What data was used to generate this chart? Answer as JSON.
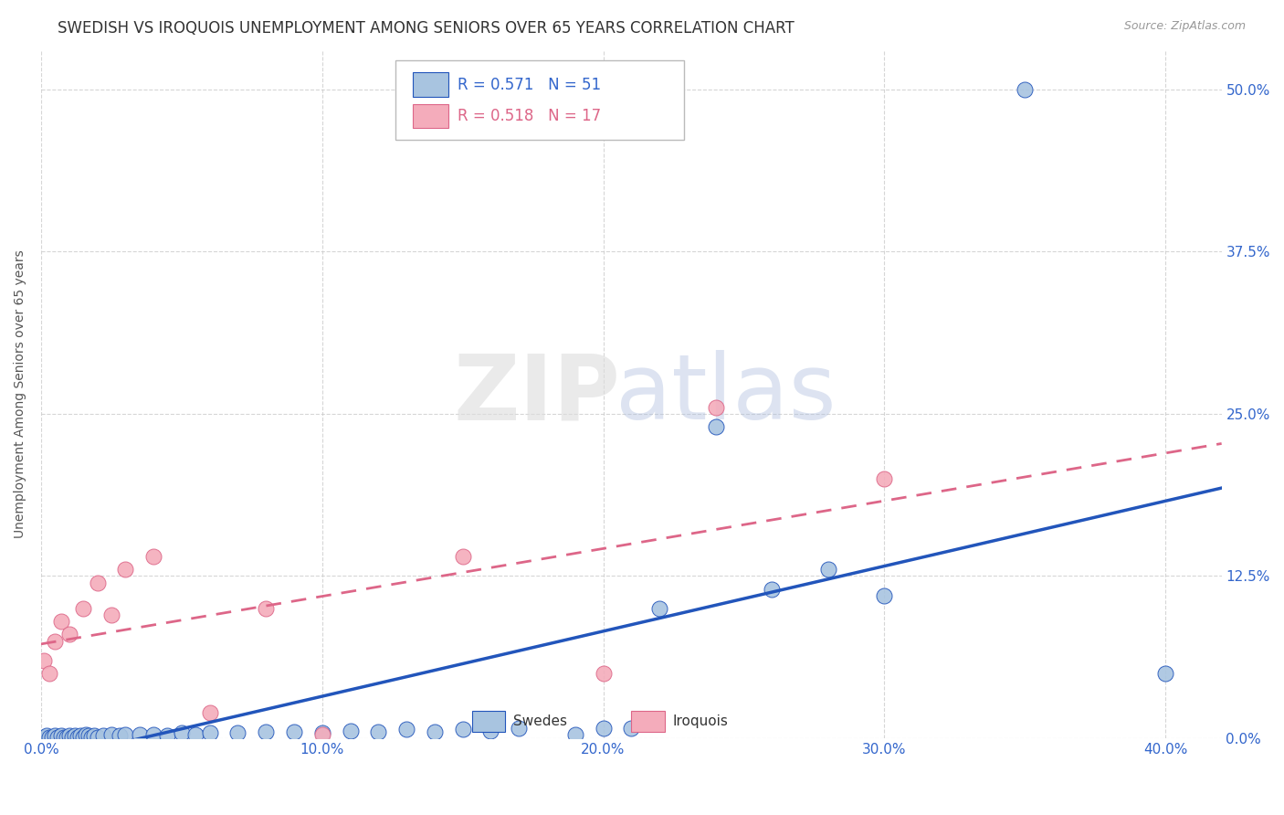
{
  "title": "SWEDISH VS IROQUOIS UNEMPLOYMENT AMONG SENIORS OVER 65 YEARS CORRELATION CHART",
  "source": "Source: ZipAtlas.com",
  "xlabel_ticks": [
    "0.0%",
    "10.0%",
    "20.0%",
    "30.0%",
    "40.0%"
  ],
  "ylabel_ticks": [
    "0.0%",
    "12.5%",
    "25.0%",
    "37.5%",
    "50.0%"
  ],
  "ylabel_label": "Unemployment Among Seniors over 65 years",
  "legend_swedes": "Swedes",
  "legend_iroquois": "Iroquois",
  "swedish_R": 0.571,
  "swedish_N": 51,
  "iroquois_R": 0.518,
  "iroquois_N": 17,
  "swedish_color": "#A8C4E0",
  "iroquois_color": "#F4ACBB",
  "swedish_line_color": "#2255BB",
  "iroquois_line_color": "#DD6688",
  "background_color": "#FFFFFF",
  "watermark_zip": "ZIP",
  "watermark_atlas": "atlas",
  "swedish_points": [
    [
      0.001,
      0.001
    ],
    [
      0.002,
      0.002
    ],
    [
      0.003,
      0.001
    ],
    [
      0.004,
      0.001
    ],
    [
      0.005,
      0.002
    ],
    [
      0.006,
      0.001
    ],
    [
      0.007,
      0.002
    ],
    [
      0.008,
      0.001
    ],
    [
      0.009,
      0.001
    ],
    [
      0.01,
      0.002
    ],
    [
      0.011,
      0.001
    ],
    [
      0.012,
      0.002
    ],
    [
      0.013,
      0.001
    ],
    [
      0.014,
      0.002
    ],
    [
      0.015,
      0.001
    ],
    [
      0.016,
      0.003
    ],
    [
      0.017,
      0.002
    ],
    [
      0.018,
      0.001
    ],
    [
      0.019,
      0.002
    ],
    [
      0.02,
      0.001
    ],
    [
      0.022,
      0.002
    ],
    [
      0.025,
      0.003
    ],
    [
      0.028,
      0.002
    ],
    [
      0.03,
      0.003
    ],
    [
      0.035,
      0.003
    ],
    [
      0.04,
      0.003
    ],
    [
      0.045,
      0.002
    ],
    [
      0.05,
      0.004
    ],
    [
      0.055,
      0.003
    ],
    [
      0.06,
      0.004
    ],
    [
      0.07,
      0.004
    ],
    [
      0.08,
      0.005
    ],
    [
      0.09,
      0.005
    ],
    [
      0.1,
      0.004
    ],
    [
      0.11,
      0.006
    ],
    [
      0.12,
      0.005
    ],
    [
      0.13,
      0.007
    ],
    [
      0.14,
      0.005
    ],
    [
      0.15,
      0.007
    ],
    [
      0.16,
      0.006
    ],
    [
      0.17,
      0.008
    ],
    [
      0.19,
      0.003
    ],
    [
      0.2,
      0.008
    ],
    [
      0.21,
      0.008
    ],
    [
      0.22,
      0.1
    ],
    [
      0.24,
      0.24
    ],
    [
      0.26,
      0.115
    ],
    [
      0.28,
      0.13
    ],
    [
      0.3,
      0.11
    ],
    [
      0.35,
      0.5
    ],
    [
      0.4,
      0.05
    ]
  ],
  "iroquois_points": [
    [
      0.001,
      0.06
    ],
    [
      0.003,
      0.05
    ],
    [
      0.005,
      0.075
    ],
    [
      0.007,
      0.09
    ],
    [
      0.01,
      0.08
    ],
    [
      0.015,
      0.1
    ],
    [
      0.02,
      0.12
    ],
    [
      0.025,
      0.095
    ],
    [
      0.03,
      0.13
    ],
    [
      0.04,
      0.14
    ],
    [
      0.06,
      0.02
    ],
    [
      0.08,
      0.1
    ],
    [
      0.1,
      0.003
    ],
    [
      0.15,
      0.14
    ],
    [
      0.2,
      0.05
    ],
    [
      0.24,
      0.255
    ],
    [
      0.3,
      0.2
    ]
  ],
  "xlim": [
    0.0,
    0.42
  ],
  "ylim": [
    0.0,
    0.53
  ],
  "x_ticks": [
    0.0,
    0.1,
    0.2,
    0.3,
    0.4
  ],
  "y_ticks": [
    0.0,
    0.125,
    0.25,
    0.375,
    0.5
  ]
}
